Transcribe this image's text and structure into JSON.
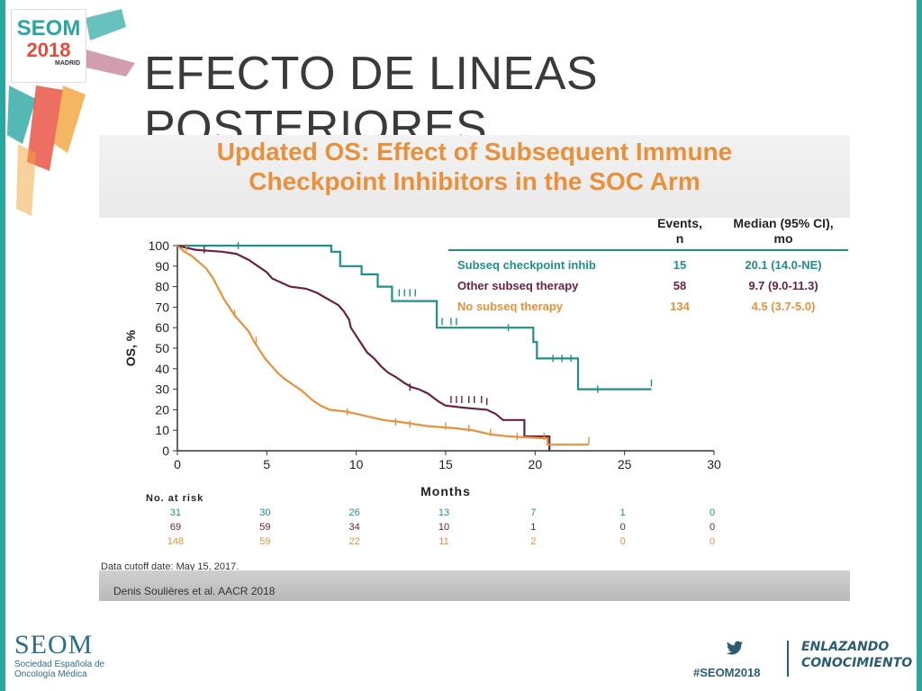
{
  "slide": {
    "title": "EFECTO DE LINEAS POSTERIORES",
    "logo": {
      "brand": "SEOM",
      "year": "2018",
      "city": "MADRID"
    },
    "footer": {
      "brand": "SEOM",
      "brand_sub": "Sociedad Española de Oncología Médica",
      "hashtag": "#SEOM2018",
      "slogan_line1": "ENLAZANDO",
      "slogan_line2": "CONOCIMIENTO"
    },
    "colors": {
      "accent": "#2aa6a1",
      "title_orange": "#e8903b",
      "footer_blue": "#2b5d72"
    }
  },
  "chart_data": {
    "type": "line",
    "title": "Updated OS: Effect of Subsequent Immune Checkpoint Inhibitors in the SOC Arm",
    "title_line1": "Updated OS: Effect of Subsequent Immune",
    "title_line2": "Checkpoint Inhibitors in the SOC Arm",
    "xlabel": "Months",
    "ylabel": "OS, %",
    "xlim": [
      0,
      30
    ],
    "ylim": [
      0,
      100
    ],
    "xticks": [
      0,
      5,
      10,
      15,
      20,
      25,
      30
    ],
    "yticks": [
      0,
      10,
      20,
      30,
      40,
      50,
      60,
      70,
      80,
      90,
      100
    ],
    "grid": false,
    "legend": {
      "header_events": "Events, n",
      "header_events_l1": "Events,",
      "header_events_l2": "n",
      "header_median": "Median (95% CI), mo",
      "header_median_l1": "Median (95% CI),",
      "header_median_l2": "mo",
      "placement": "top-right"
    },
    "series": [
      {
        "name": "Subseq checkpoint inhib",
        "events": "15",
        "median": "20.1 (14.0-NE)",
        "color": "#1f9089",
        "points": [
          [
            0,
            100
          ],
          [
            8.6,
            100
          ],
          [
            8.6,
            97
          ],
          [
            9.1,
            97
          ],
          [
            9.1,
            90
          ],
          [
            10.3,
            90
          ],
          [
            10.3,
            86
          ],
          [
            11.2,
            86
          ],
          [
            11.2,
            80
          ],
          [
            12.0,
            80
          ],
          [
            12.0,
            73
          ],
          [
            14.5,
            73
          ],
          [
            14.5,
            60
          ],
          [
            19.9,
            60
          ],
          [
            19.9,
            53
          ],
          [
            20.1,
            53
          ],
          [
            20.1,
            45
          ],
          [
            22.4,
            45
          ],
          [
            22.4,
            30
          ],
          [
            26.5,
            30
          ]
        ],
        "censors": [
          [
            3.4,
            100
          ],
          [
            12.4,
            77
          ],
          [
            12.7,
            77
          ],
          [
            13.0,
            77
          ],
          [
            13.3,
            77
          ],
          [
            14.8,
            63
          ],
          [
            15.3,
            63
          ],
          [
            15.6,
            63
          ],
          [
            18.5,
            60
          ],
          [
            21.0,
            45
          ],
          [
            21.5,
            45
          ],
          [
            22.0,
            45
          ],
          [
            23.5,
            30
          ],
          [
            26.5,
            33
          ]
        ]
      },
      {
        "name": "Other subseq therapy",
        "events": "58",
        "median": "9.7 (9.0-11.3)",
        "color": "#6b2142",
        "points": [
          [
            0,
            100
          ],
          [
            1,
            98
          ],
          [
            2.5,
            97
          ],
          [
            3.3,
            96
          ],
          [
            4,
            93
          ],
          [
            4.5,
            90
          ],
          [
            5,
            87
          ],
          [
            5.3,
            84
          ],
          [
            5.8,
            82
          ],
          [
            6.3,
            80
          ],
          [
            7.2,
            79
          ],
          [
            7.8,
            77
          ],
          [
            8.2,
            75
          ],
          [
            8.6,
            73
          ],
          [
            9.0,
            71
          ],
          [
            9.3,
            68
          ],
          [
            9.6,
            64
          ],
          [
            9.7,
            60
          ],
          [
            10,
            56
          ],
          [
            10.3,
            52
          ],
          [
            10.6,
            48
          ],
          [
            11.0,
            45
          ],
          [
            11.4,
            41
          ],
          [
            11.8,
            38
          ],
          [
            12.2,
            36
          ],
          [
            12.7,
            33
          ],
          [
            13.1,
            31
          ],
          [
            13.5,
            30
          ],
          [
            14,
            28
          ],
          [
            14.3,
            26
          ],
          [
            14.6,
            24
          ],
          [
            15,
            22
          ],
          [
            16,
            21
          ],
          [
            17.3,
            20
          ],
          [
            17.8,
            18
          ],
          [
            18.2,
            15
          ],
          [
            19.4,
            15
          ],
          [
            19.4,
            7
          ],
          [
            20.8,
            7
          ],
          [
            20.8,
            0
          ]
        ],
        "censors": [
          [
            1.5,
            98
          ],
          [
            13.0,
            31
          ],
          [
            15.3,
            25
          ],
          [
            15.6,
            25
          ],
          [
            15.9,
            25
          ],
          [
            16.3,
            25
          ],
          [
            16.6,
            25
          ],
          [
            17.0,
            25
          ],
          [
            17.3,
            24
          ]
        ]
      },
      {
        "name": "No subseq therapy",
        "events": "134",
        "median": "4.5 (3.7-5.0)",
        "color": "#e8903b",
        "points": [
          [
            0,
            100
          ],
          [
            0.4,
            97
          ],
          [
            0.8,
            95
          ],
          [
            1.2,
            92
          ],
          [
            1.6,
            89
          ],
          [
            2,
            84
          ],
          [
            2.3,
            79
          ],
          [
            2.6,
            74
          ],
          [
            2.9,
            70
          ],
          [
            3.2,
            66
          ],
          [
            3.6,
            62
          ],
          [
            4,
            58
          ],
          [
            4.3,
            53
          ],
          [
            4.6,
            49
          ],
          [
            4.9,
            45
          ],
          [
            5.2,
            42
          ],
          [
            5.6,
            38
          ],
          [
            6,
            35
          ],
          [
            6.5,
            32
          ],
          [
            7,
            29
          ],
          [
            7.5,
            25
          ],
          [
            8,
            22
          ],
          [
            8.5,
            20
          ],
          [
            9.5,
            19
          ],
          [
            10.5,
            17
          ],
          [
            11.5,
            15
          ],
          [
            12.5,
            14
          ],
          [
            14,
            12
          ],
          [
            15.5,
            11
          ],
          [
            16.5,
            10
          ],
          [
            17.5,
            8
          ],
          [
            18.5,
            7
          ],
          [
            20.7,
            6
          ],
          [
            20.7,
            3
          ],
          [
            23,
            3
          ]
        ],
        "censors": [
          [
            0.5,
            99
          ],
          [
            3.2,
            67
          ],
          [
            4.4,
            54
          ],
          [
            9.5,
            19
          ],
          [
            12.2,
            14
          ],
          [
            13.0,
            13
          ],
          [
            15.0,
            12
          ],
          [
            16.3,
            11
          ],
          [
            17.5,
            9
          ],
          [
            19.0,
            7
          ],
          [
            20.5,
            7
          ],
          [
            23,
            5
          ]
        ]
      }
    ],
    "at_risk": {
      "label": "No. at risk",
      "times": [
        0,
        5,
        10,
        15,
        20,
        25,
        30
      ],
      "rows": [
        {
          "values": [
            "31",
            "30",
            "26",
            "13",
            "7",
            "1",
            "0"
          ]
        },
        {
          "values": [
            "69",
            "59",
            "34",
            "10",
            "1",
            "0",
            "0"
          ]
        },
        {
          "values": [
            "148",
            "59",
            "22",
            "11",
            "2",
            "0",
            "0"
          ]
        }
      ]
    },
    "cutoff": "Data cutoff date: May 15, 2017.",
    "citation": "Denis Soulières et al. AACR 2018"
  }
}
